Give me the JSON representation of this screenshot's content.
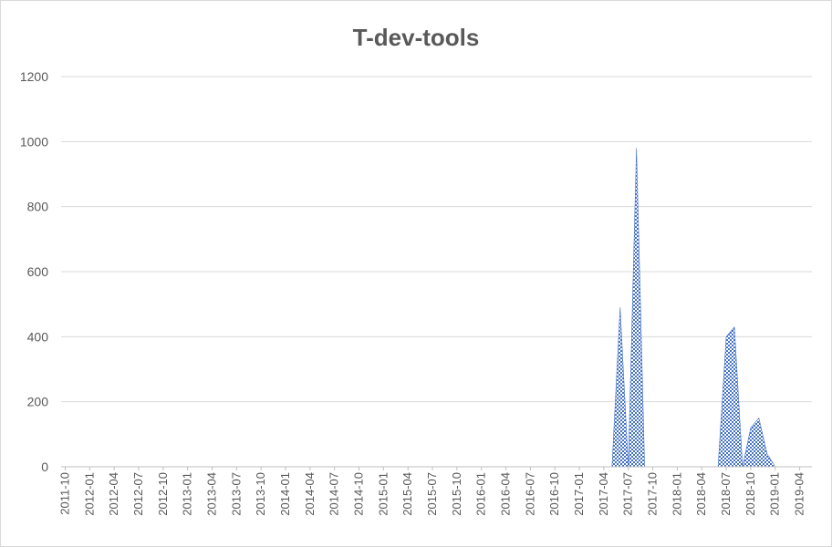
{
  "chart_data": {
    "type": "area",
    "title": "T-dev-tools",
    "xlabel": "",
    "ylabel": "",
    "ylim": [
      0,
      1200
    ],
    "yticks": [
      0,
      200,
      400,
      600,
      800,
      1000,
      1200
    ],
    "grid": true,
    "legend": "none",
    "x_tick_labels": [
      "2011-10",
      "2012-01",
      "2012-04",
      "2012-07",
      "2012-10",
      "2013-01",
      "2013-04",
      "2013-07",
      "2013-10",
      "2014-01",
      "2014-04",
      "2014-07",
      "2014-10",
      "2015-01",
      "2015-04",
      "2015-07",
      "2015-10",
      "2016-01",
      "2016-04",
      "2016-07",
      "2016-10",
      "2017-01",
      "2017-04",
      "2017-07",
      "2017-10",
      "2018-01",
      "2018-04",
      "2018-07",
      "2018-10",
      "2019-01",
      "2019-04"
    ],
    "x": [
      "2011-10",
      "2011-11",
      "2011-12",
      "2012-01",
      "2012-02",
      "2012-03",
      "2012-04",
      "2012-05",
      "2012-06",
      "2012-07",
      "2012-08",
      "2012-09",
      "2012-10",
      "2012-11",
      "2012-12",
      "2013-01",
      "2013-02",
      "2013-03",
      "2013-04",
      "2013-05",
      "2013-06",
      "2013-07",
      "2013-08",
      "2013-09",
      "2013-10",
      "2013-11",
      "2013-12",
      "2014-01",
      "2014-02",
      "2014-03",
      "2014-04",
      "2014-05",
      "2014-06",
      "2014-07",
      "2014-08",
      "2014-09",
      "2014-10",
      "2014-11",
      "2014-12",
      "2015-01",
      "2015-02",
      "2015-03",
      "2015-04",
      "2015-05",
      "2015-06",
      "2015-07",
      "2015-08",
      "2015-09",
      "2015-10",
      "2015-11",
      "2015-12",
      "2016-01",
      "2016-02",
      "2016-03",
      "2016-04",
      "2016-05",
      "2016-06",
      "2016-07",
      "2016-08",
      "2016-09",
      "2016-10",
      "2016-11",
      "2016-12",
      "2017-01",
      "2017-02",
      "2017-03",
      "2017-04",
      "2017-05",
      "2017-06",
      "2017-07",
      "2017-08",
      "2017-09",
      "2017-10",
      "2017-11",
      "2017-12",
      "2018-01",
      "2018-02",
      "2018-03",
      "2018-04",
      "2018-05",
      "2018-06",
      "2018-07",
      "2018-08",
      "2018-09",
      "2018-10",
      "2018-11",
      "2018-12",
      "2019-01",
      "2019-02",
      "2019-03",
      "2019-04",
      "2019-05"
    ],
    "series": [
      {
        "values": [
          0,
          0,
          0,
          0,
          0,
          0,
          0,
          0,
          0,
          0,
          0,
          0,
          0,
          0,
          0,
          0,
          0,
          0,
          0,
          0,
          0,
          0,
          0,
          0,
          0,
          0,
          0,
          0,
          0,
          0,
          0,
          0,
          0,
          0,
          0,
          0,
          0,
          0,
          0,
          0,
          0,
          0,
          0,
          0,
          0,
          0,
          0,
          0,
          0,
          0,
          0,
          0,
          0,
          0,
          0,
          0,
          0,
          0,
          0,
          0,
          0,
          0,
          0,
          0,
          0,
          0,
          0,
          0,
          490,
          0,
          980,
          0,
          0,
          0,
          0,
          0,
          0,
          0,
          0,
          0,
          0,
          400,
          430,
          0,
          120,
          150,
          40,
          0,
          0,
          0,
          0,
          0
        ],
        "color": "#4472c4"
      }
    ]
  }
}
